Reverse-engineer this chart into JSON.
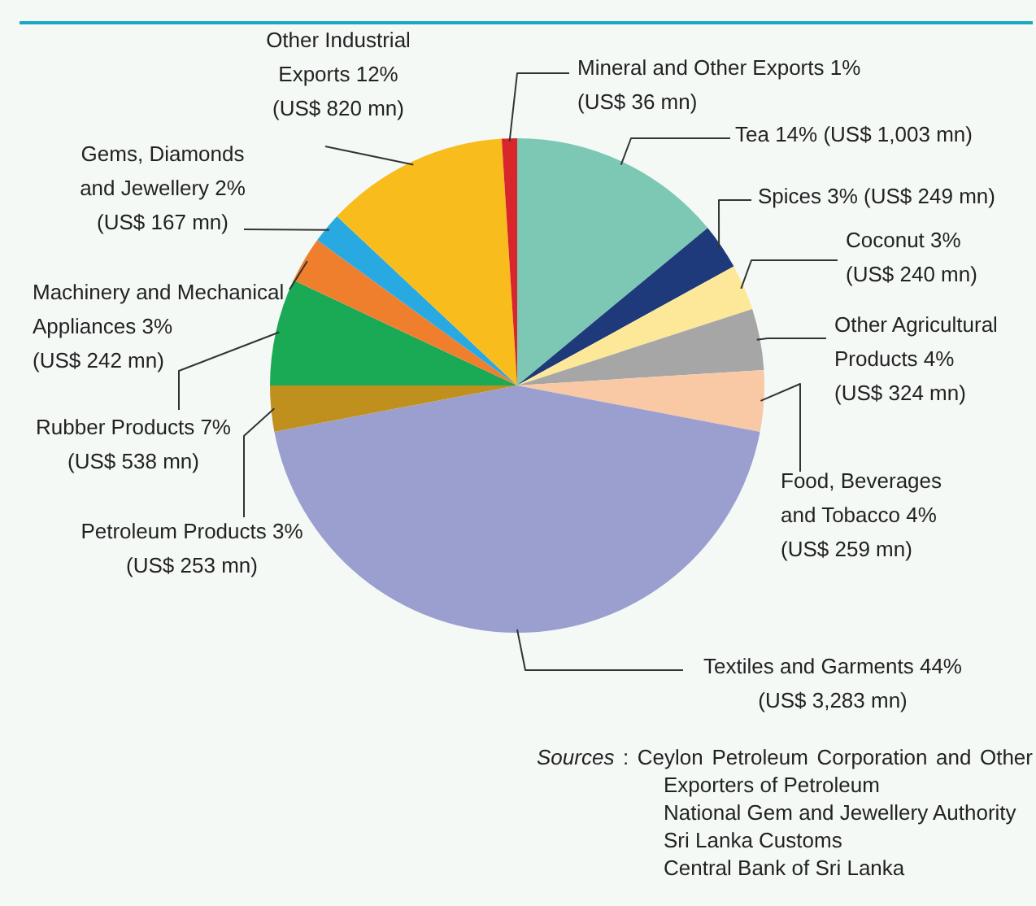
{
  "chart_data": {
    "type": "pie",
    "categories": [
      "Tea",
      "Spices",
      "Coconut",
      "Other Agricultural Products",
      "Food, Beverages and Tobacco",
      "Textiles and Garments",
      "Petroleum Products",
      "Rubber Products",
      "Machinery and Mechanical Appliances",
      "Gems, Diamonds and Jewellery",
      "Other Industrial Exports",
      "Mineral and Other Exports"
    ],
    "values": [
      14,
      3,
      3,
      4,
      4,
      44,
      3,
      7,
      3,
      2,
      12,
      1
    ],
    "value_labels": [
      "14% (US$ 1,003 mn)",
      "3% (US$ 249 mn)",
      "3% (US$ 240 mn)",
      "4% (US$ 324 mn)",
      "4% (US$ 259 mn)",
      "44% (US$ 3,283 mn)",
      "3% (US$ 253 mn)",
      "7% (US$ 538 mn)",
      "3% (US$ 242 mn)",
      "2% (US$ 167 mn)",
      "12% (US$ 820 mn)",
      "1% (US$ 36 mn)"
    ],
    "colors": [
      "#7cc8b4",
      "#1f3a7a",
      "#fde89a",
      "#a6a6a6",
      "#f9c9a5",
      "#9a9fd0",
      "#c0901e",
      "#1aaa55",
      "#f07f2d",
      "#29a9e1",
      "#f8bc1c",
      "#d9262b"
    ],
    "legend": false,
    "annotations": [
      "Sources : Ceylon Petroleum Corporation and Other Exporters of Petroleum",
      "National Gem and Jewellery Authority",
      "Sri Lanka Customs",
      "Central Bank of Sri Lanka"
    ]
  }
}
